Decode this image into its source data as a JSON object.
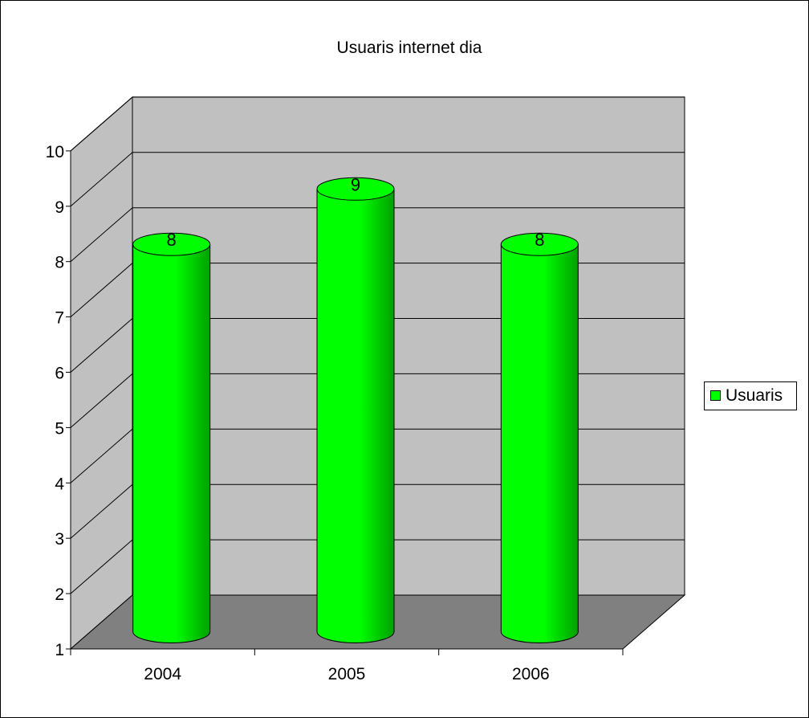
{
  "chart_data": {
    "type": "bar",
    "title": "Usuaris internet dia",
    "categories": [
      "2004",
      "2005",
      "2006"
    ],
    "series": [
      {
        "name": "Usuaris",
        "values": [
          8,
          9,
          8
        ]
      }
    ],
    "data_labels": [
      "8",
      "9",
      "8"
    ],
    "ylim": [
      1,
      10
    ],
    "yticks": [
      "1",
      "2",
      "3",
      "4",
      "5",
      "6",
      "7",
      "8",
      "9",
      "10"
    ],
    "grid": true,
    "legend_position": "right",
    "bar_shape": "3d-cylinder",
    "colors": {
      "bar": "#00ff00",
      "bar_dark": "#00a000",
      "wall": "#c0c0c0",
      "floor": "#808080"
    }
  }
}
